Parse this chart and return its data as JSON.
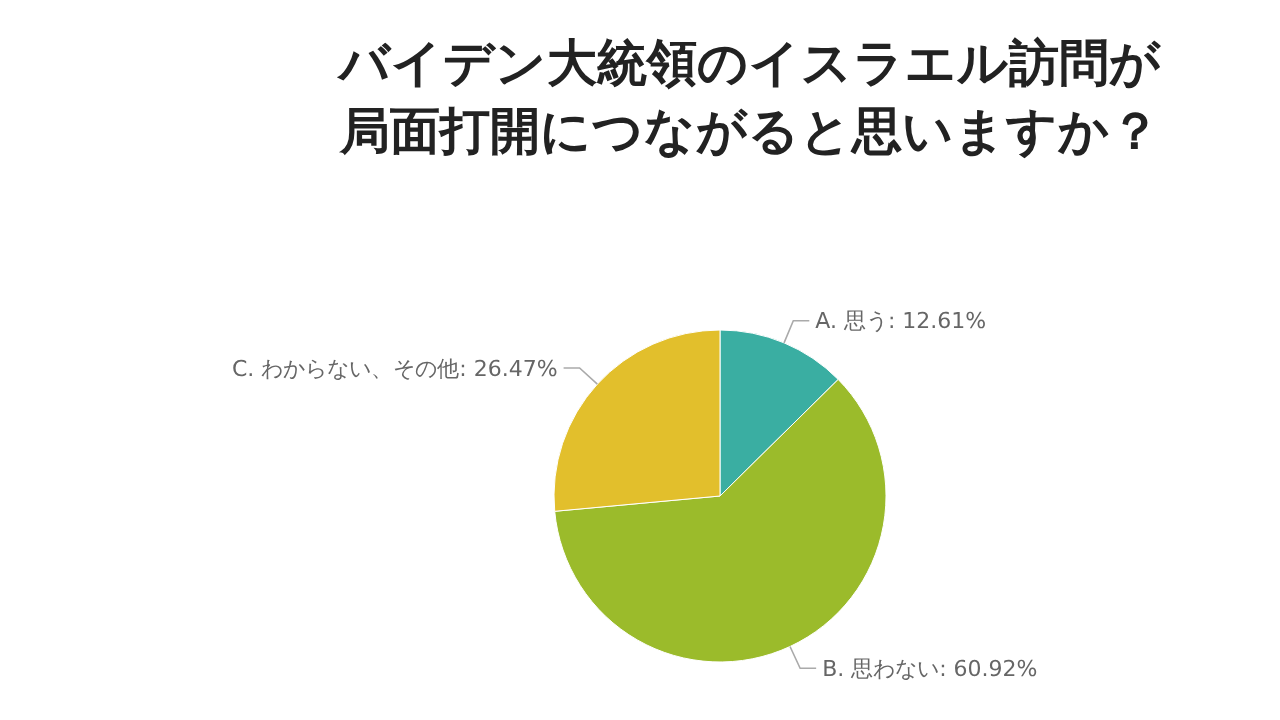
{
  "chart_data": {
    "type": "pie",
    "title": "バイデン大統領のイスラエル訪問が局面打開につながると思いますか？",
    "categories": [
      "A. 思う",
      "B. 思わない",
      "C. わからない、その他"
    ],
    "values": [
      12.61,
      60.92,
      26.47
    ],
    "colors": [
      "#3aaea2",
      "#9bbb2b",
      "#e2bf2c"
    ],
    "value_labels": [
      "12.61%",
      "60.92%",
      "26.47%"
    ]
  }
}
